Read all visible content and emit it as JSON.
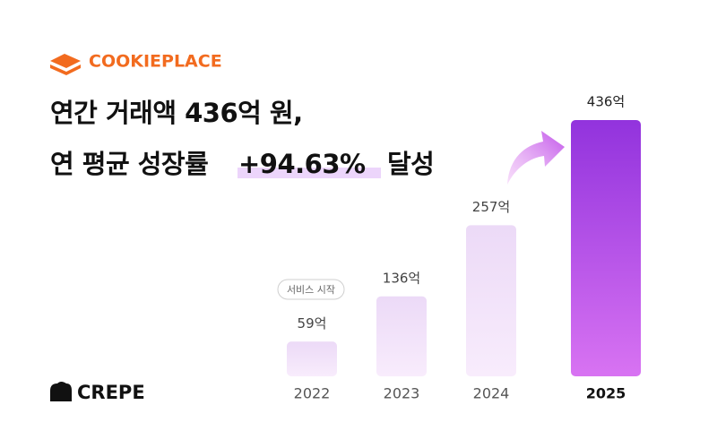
{
  "brand": "COOKIEPLACE",
  "footer_brand": "CREPE",
  "chart_data": {
    "type": "bar",
    "title_lines": [
      [
        "연간 거래액 436억 원,"
      ],
      [
        "연 평균 성장률",
        "+94.63%",
        "달성"
      ]
    ],
    "annotation": "서비스 시작",
    "categories": [
      "2022",
      "2023",
      "2024",
      "2025"
    ],
    "values": [
      59,
      136,
      257,
      436
    ],
    "value_labels": [
      "59억",
      "136억",
      "257억",
      "436억"
    ],
    "colors": [
      "#ecdaf7",
      "#ecdaf7",
      "#ecdaf7",
      "#9233dd"
    ]
  }
}
